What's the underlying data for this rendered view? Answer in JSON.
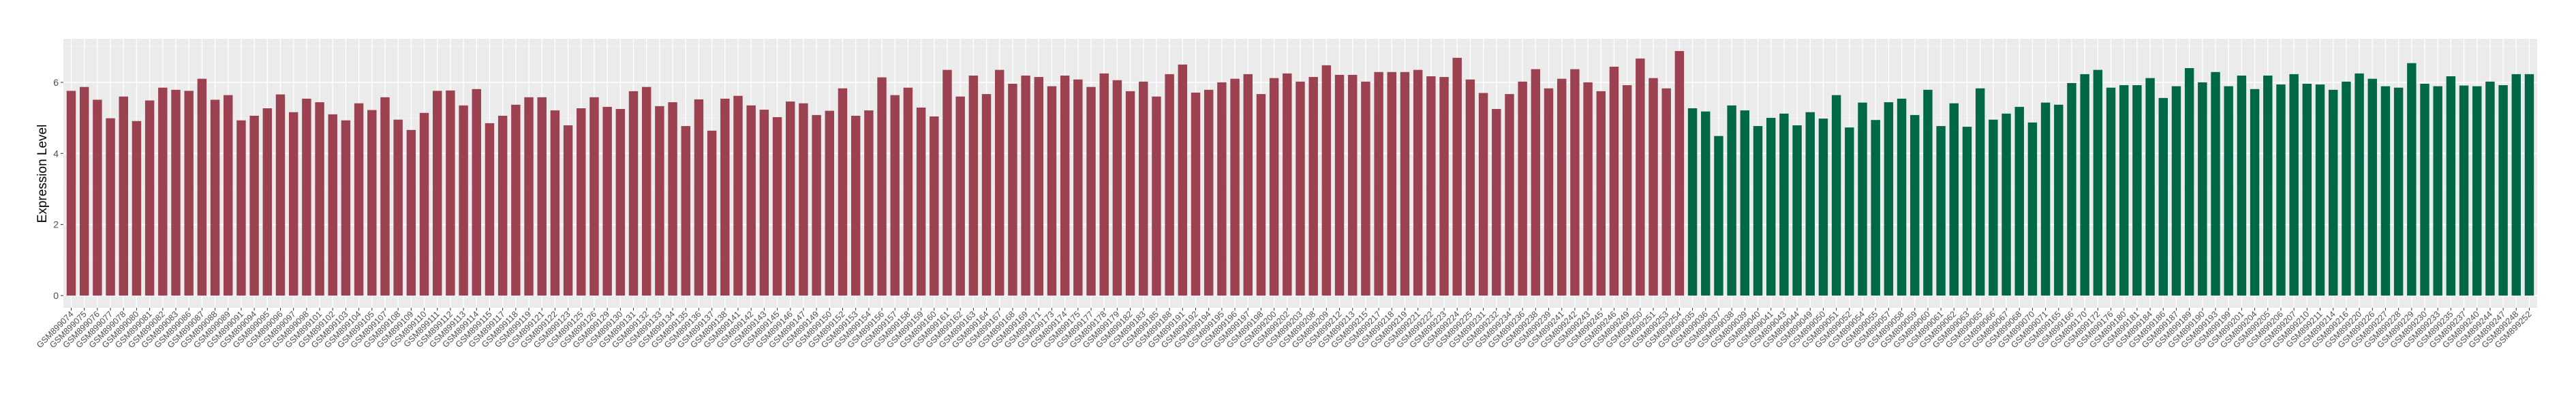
{
  "chart_data": {
    "type": "bar",
    "title": "",
    "xlabel": "",
    "ylabel": "Expression Level",
    "ylim": [
      0,
      7
    ],
    "yticks": [
      "0",
      "2",
      "4",
      "6"
    ],
    "grid": true,
    "legend": "none",
    "panel_background": "#ebebeb",
    "series": [
      {
        "color": "#9b4150",
        "categories": [
          "GSM899074",
          "GSM899075",
          "GSM899076",
          "GSM899077",
          "GSM899078",
          "GSM899080",
          "GSM899081",
          "GSM899082",
          "GSM899083",
          "GSM899086",
          "GSM899087",
          "GSM899088",
          "GSM899089",
          "GSM899091",
          "GSM899094",
          "GSM899095",
          "GSM899096",
          "GSM899097",
          "GSM899098",
          "GSM899101",
          "GSM899102",
          "GSM899103",
          "GSM899104",
          "GSM899105",
          "GSM899107",
          "GSM899108",
          "GSM899109",
          "GSM899110",
          "GSM899111",
          "GSM899112",
          "GSM899113",
          "GSM899114",
          "GSM899115",
          "GSM899117",
          "GSM899118",
          "GSM899119",
          "GSM899121",
          "GSM899122",
          "GSM899123",
          "GSM899125",
          "GSM899126",
          "GSM899129",
          "GSM899130",
          "GSM899131",
          "GSM899132",
          "GSM899133",
          "GSM899134",
          "GSM899135",
          "GSM899136",
          "GSM899137",
          "GSM899138",
          "GSM899141",
          "GSM899142",
          "GSM899143",
          "GSM899145",
          "GSM899146",
          "GSM899147",
          "GSM899149",
          "GSM899150",
          "GSM899152",
          "GSM899153",
          "GSM899154",
          "GSM899156",
          "GSM899157",
          "GSM899158",
          "GSM899159",
          "GSM899160",
          "GSM899161",
          "GSM899162",
          "GSM899163",
          "GSM899164",
          "GSM899167",
          "GSM899168",
          "GSM899169",
          "GSM899171",
          "GSM899173",
          "GSM899174",
          "GSM899175",
          "GSM899177",
          "GSM899178",
          "GSM899179",
          "GSM899182",
          "GSM899183",
          "GSM899185",
          "GSM899188",
          "GSM899191",
          "GSM899192",
          "GSM899194",
          "GSM899195",
          "GSM899196",
          "GSM899197",
          "GSM899198",
          "GSM899200",
          "GSM899202",
          "GSM899203",
          "GSM899208",
          "GSM899209",
          "GSM899212",
          "GSM899213",
          "GSM899215",
          "GSM899217",
          "GSM899218",
          "GSM899219",
          "GSM899221",
          "GSM899222",
          "GSM899223",
          "GSM899224",
          "GSM899225",
          "GSM899231",
          "GSM899232",
          "GSM899234",
          "GSM899236",
          "GSM899238",
          "GSM899239",
          "GSM899241",
          "GSM899242",
          "GSM899243",
          "GSM899245",
          "GSM899246",
          "GSM899249",
          "GSM899250",
          "GSM899251",
          "GSM899253",
          "GSM899254"
        ],
        "values": [
          5.76,
          5.87,
          5.51,
          4.99,
          5.6,
          4.91,
          5.49,
          5.85,
          5.79,
          5.76,
          6.1,
          5.51,
          5.64,
          4.93,
          5.06,
          5.27,
          5.66,
          5.16,
          5.54,
          5.44,
          5.1,
          4.93,
          5.41,
          5.22,
          5.58,
          4.95,
          4.66,
          5.14,
          5.76,
          5.77,
          5.35,
          5.81,
          4.85,
          5.06,
          5.37,
          5.58,
          5.58,
          5.21,
          4.79,
          5.27,
          5.58,
          5.31,
          5.25,
          5.75,
          5.87,
          5.33,
          5.44,
          4.77,
          5.52,
          4.64,
          5.54,
          5.62,
          5.35,
          5.23,
          5.02,
          5.46,
          5.41,
          5.08,
          5.2,
          5.83,
          5.06,
          5.21,
          6.14,
          5.64,
          5.85,
          5.29,
          5.04,
          6.35,
          5.6,
          6.19,
          5.67,
          6.35,
          5.96,
          6.19,
          6.15,
          5.89,
          6.19,
          6.08,
          5.87,
          6.25,
          6.06,
          5.75,
          6.02,
          5.6,
          6.23,
          6.5,
          5.71,
          5.79,
          6.0,
          6.1,
          6.23,
          5.67,
          6.12,
          6.25,
          6.02,
          6.15,
          6.48,
          6.21,
          6.21,
          6.02,
          6.29,
          6.29,
          6.29,
          6.35,
          6.17,
          6.15,
          6.69,
          6.08,
          5.7,
          5.25,
          5.67,
          6.02,
          6.37,
          5.83,
          6.1,
          6.37,
          6.0,
          5.75,
          6.44,
          5.92,
          6.67,
          6.12,
          5.83,
          6.88
        ]
      },
      {
        "color": "#006846",
        "categories": [
          "GSM899035",
          "GSM899036",
          "GSM899037",
          "GSM899038",
          "GSM899039",
          "GSM899040",
          "GSM899041",
          "GSM899043",
          "GSM899044",
          "GSM899049",
          "GSM899050",
          "GSM899051",
          "GSM899052",
          "GSM899054",
          "GSM899055",
          "GSM899057",
          "GSM899058",
          "GSM899059",
          "GSM899060",
          "GSM899061",
          "GSM899062",
          "GSM899063",
          "GSM899065",
          "GSM899066",
          "GSM899067",
          "GSM899068",
          "GSM899070",
          "GSM899071",
          "GSM899165",
          "GSM899166",
          "GSM899170",
          "GSM899172",
          "GSM899176",
          "GSM899180",
          "GSM899181",
          "GSM899184",
          "GSM899186",
          "GSM899187",
          "GSM899189",
          "GSM899190",
          "GSM899193",
          "GSM899199",
          "GSM899201",
          "GSM899204",
          "GSM899205",
          "GSM899206",
          "GSM899207",
          "GSM899210",
          "GSM899211",
          "GSM899214",
          "GSM899216",
          "GSM899220",
          "GSM899226",
          "GSM899227",
          "GSM899228",
          "GSM899229",
          "GSM899230",
          "GSM899233",
          "GSM899235",
          "GSM899237",
          "GSM899240",
          "GSM899244",
          "GSM899247",
          "GSM899248",
          "GSM899252"
        ],
        "values": [
          5.27,
          5.18,
          4.49,
          5.35,
          5.21,
          4.77,
          5.0,
          5.12,
          4.79,
          5.16,
          4.98,
          5.64,
          4.73,
          5.43,
          4.94,
          5.44,
          5.54,
          5.08,
          5.79,
          4.77,
          5.41,
          4.75,
          5.83,
          4.95,
          5.12,
          5.31,
          4.87,
          5.43,
          5.37,
          5.98,
          6.23,
          6.35,
          5.85,
          5.92,
          5.92,
          6.12,
          5.56,
          5.89,
          6.4,
          6.0,
          6.29,
          5.89,
          6.19,
          5.81,
          6.19,
          5.94,
          6.23,
          5.96,
          5.94,
          5.79,
          6.02,
          6.25,
          6.1,
          5.89,
          5.85,
          6.54,
          5.96,
          5.89,
          6.17,
          5.91,
          5.89,
          6.02,
          5.92,
          6.23,
          6.23
        ]
      }
    ]
  }
}
